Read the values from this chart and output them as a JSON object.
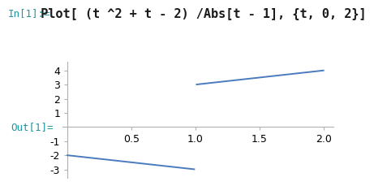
{
  "title_prefix": "In[1]:=",
  "title_code": " Plot[ (t ^2 + t - 2) /Abs[t - 1], {t, 0, 2}]",
  "out_label": "Out[1]=",
  "t_min": 0,
  "t_max": 2,
  "t_singularity": 1.0,
  "xlim": [
    -0.04,
    2.08
  ],
  "ylim": [
    -3.6,
    4.6
  ],
  "xticks": [
    0.5,
    1.0,
    1.5,
    2.0
  ],
  "yticks": [
    -3,
    -2,
    -1,
    1,
    2,
    3,
    4
  ],
  "line_color": "#4a7bbf",
  "background_color": "#ffffff",
  "line_width": 1.4,
  "title_prefix_fontsize": 9,
  "title_code_fontsize": 11,
  "tick_label_fontsize": 9,
  "out_label_color": "#2196a0",
  "out_label_fontsize": 9,
  "spine_color": "#b0b0b0",
  "spine_lw": 0.8
}
